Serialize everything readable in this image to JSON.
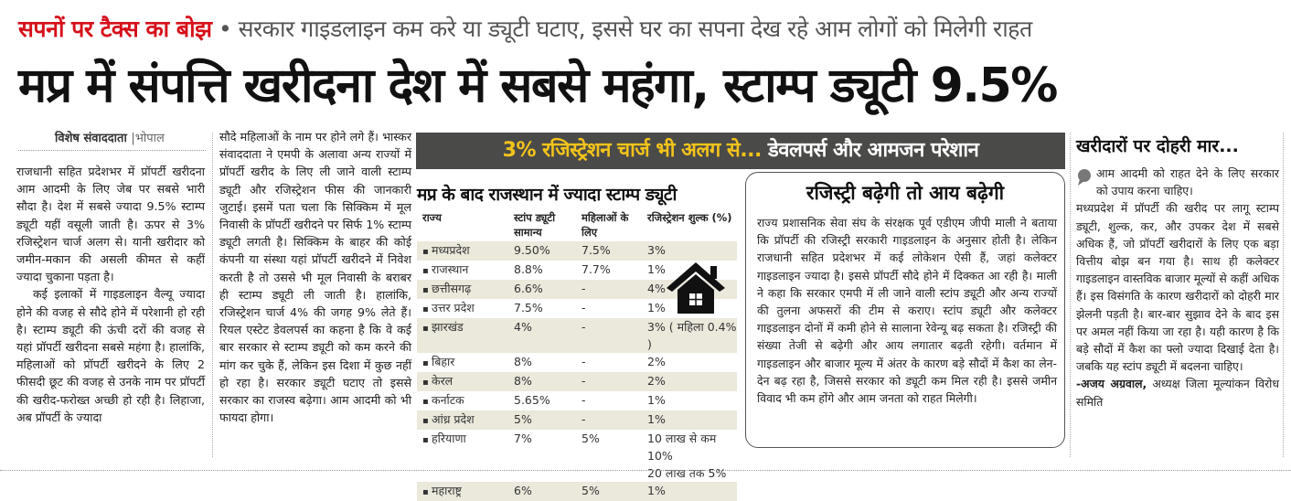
{
  "kicker": {
    "label": "सपनों पर टैक्स का बोझ",
    "bullet": "•",
    "subhead": "सरकार गाइडलाइन कम करे या ड्यूटी घटाए, इससे घर का सपना देख रहे आम लोगों को मिलेगी राहत"
  },
  "headline": "मप्र में संपत्ति खरीदना देश में सबसे महंगा, स्टाम्प ड्यूटी 9.5%",
  "byline": {
    "author": "विशेष संवाददाता",
    "separator": "|",
    "city": "भोपाल"
  },
  "story": {
    "p1": "राजधानी सहित प्रदेशभर में प्रॉपर्टी खरीदना आम आदमी के लिए जेब पर सबसे भारी सौदा है। देश में सबसे ज्यादा 9.5% स्टाम्प ड्यूटी यहीं वसूली जाती है। ऊपर से 3% रजिस्ट्रेशन चार्ज अलग से। यानी खरीदार को जमीन-मकान की असली कीमत से कहीं ज्यादा चुकाना पड़ता है।",
    "p2": "कई इलाकों में गाइडलाइन वैल्यू ज्यादा होने की वजह से सौदे होने में परेशानी हो रही है। स्टाम्प ड्यूटी की ऊंची दरों की वजह से यहां प्रॉपर्टी खरीदना सबसे महंगा है। हालांकि, महिलाओं को प्रॉपर्टी खरीदने के लिए 2 फीसदी छूट की वजह से उनके नाम पर प्रॉपर्टी की खरीद-फरोख्त अच्छी हो रही है। लिहाजा, अब प्रॉपर्टी के ज्यादा",
    "p3": "सौदे महिलाओं के नाम पर होने लगे हैं। भास्कर संवाददाता ने एमपी के अलावा अन्य राज्यों में प्रॉपर्टी खरीद के लिए ली जाने वाली स्टाम्प ड्यूटी और रजिस्ट्रेशन फीस की जानकारी जुटाई। इसमें पता चला कि सिक्किम में मूल निवासी के प्रॉपर्टी खरीदने पर सिर्फ 1% स्टाम्प ड्यूटी लगती है। सिक्किम के बाहर की कोई कंपनी या संस्था यहां प्रॉपर्टी खरीदने में निवेश करती है तो उससे भी मूल निवासी के बराबर ही स्टाम्प ड्यूटी ली जाती है। हालांकि, रजिस्ट्रेशन चार्ज 4% की जगह 9% लेते हैं। रियल एस्टेट डेवलपर्स का कहना है कि वे कई बार सरकार से स्टाम्प ड्यूटी को कम करने की मांग कर चुके हैं, लेकिन इस दिशा में कुछ नहीं हो रहा है। सरकार ड्यूटी घटाए तो इससे सरकार का राजस्व बढ़ेगा। आम आदमी को भी फायदा होगा।"
  },
  "banner": {
    "highlight": "3% रजिस्ट्रेशन चार्ज भी अलग से...",
    "rest": "डेवलपर्स और आमजन परेशान"
  },
  "table": {
    "title": "मप्र के बाद राजस्थान में ज्यादा स्टाम्प ड्यूटी",
    "headers": [
      "राज्य",
      "स्टांप ड्यूटी सामान्य",
      "महिलाओं के लिए",
      "रजिस्ट्रेशन शुल्क (%)"
    ],
    "rows": [
      [
        "मध्यप्रदेश",
        "9.50%",
        "7.5%",
        "3%"
      ],
      [
        "राजस्थान",
        "8.8%",
        "7.7%",
        "1%"
      ],
      [
        "छत्तीसगढ़",
        "6.6%",
        "-",
        "4%"
      ],
      [
        "उत्तर प्रदेश",
        "7.5%",
        "-",
        "1%"
      ],
      [
        "झारखंड",
        "4%",
        "-",
        "3% ( महिला 0.4% )"
      ],
      [
        "बिहार",
        "8%",
        "-",
        "2%"
      ],
      [
        "केरल",
        "8%",
        "-",
        "2%"
      ],
      [
        "कर्नाटक",
        "5.65%",
        "-",
        "1%"
      ],
      [
        "आंध्र प्रदेश",
        "5%",
        "-",
        "1%"
      ],
      [
        "हरियाणा",
        "7%",
        "5%",
        "10 लाख से कम 10%\n20 लाख तक 5%"
      ],
      [
        "महाराष्ट्र",
        "6%",
        "5%",
        "1%"
      ]
    ],
    "icon": "house-icon"
  },
  "box": {
    "title": "रजिस्ट्री बढ़ेगी तो आय बढ़ेगी",
    "text": "राज्य प्रशासनिक सेवा संघ के संरक्षक पूर्व एडीएम जीपी माली ने बताया कि प्रॉपर्टी की रजिस्ट्री सरकारी गाइडलाइन के अनुसार होती है। लेकिन राजधानी सहित प्रदेशभर में कई लोकेशन ऐसी हैं, जहां कलेक्टर गाइडलाइन ज्यादा है। इससे प्रॉपर्टी सौदे होने में दिक्कत आ रही है। माली ने कहा कि सरकार एमपी में ली जाने वाली स्टांप ड्यूटी और अन्य राज्यों की तुलना अफसरों की टीम से कराए। स्टांप ड्यूटी और कलेक्टर गाइडलाइन दोनों में कमी होने से सालाना रेवेन्यू बढ़ सकता है। रजिस्ट्री की संख्या तेजी से बढ़ेगी और आय लगातार बढ़ती रहेगी। वर्तमान में गाइडलाइन और बाजार मूल्य में अंतर के कारण बड़े सौदों में कैश का लेन-देन बढ़ रहा है, जिससे सरकार को ड्यूटी कम मिल रही है। इससे जमीन विवाद भी कम होंगे और आम जनता को राहत मिलेगी।"
  },
  "sidebar": {
    "title": "खरीदारों पर दोहरी मार...",
    "quote_lead": "आम आदमी को राहत देने के लिए सरकार को उपाय करना चाहिए।",
    "quote_body": "मध्यप्रदेश में प्रॉपर्टी की खरीद पर लागू स्टाम्प ड्यूटी, शुल्क, कर, और उपकर देश में सबसे अधिक हैं, जो प्रॉपर्टी खरीदारों के लिए एक बड़ा वित्तीय बोझ बन गया है। साथ ही कलेक्टर गाइडलाइन वास्तविक बाजार मूल्यों से कहीं अधिक हैं। इस विसंगति के कारण खरीदारों को दोहरी मार झेलनी पड़ती है। बार-बार सुझाव देने के बाद इस पर अमल नहीं किया जा रहा है। यही कारण है कि बड़े सौदों में कैश का फ्लो ज्यादा दिखाई देता है। जबकि यह स्टांप ड्यूटी में बदलना चाहिए।",
    "attribution_name": "-अजय अग्रवाल,",
    "attribution_role": "अध्यक्ष जिला मूल्यांकन विरोध समिति"
  },
  "colors": {
    "kicker_red": "#d6101a",
    "banner_bg": "#4a4a48",
    "banner_yellow": "#f3c31b",
    "row_shade": "#ebe8dc"
  }
}
